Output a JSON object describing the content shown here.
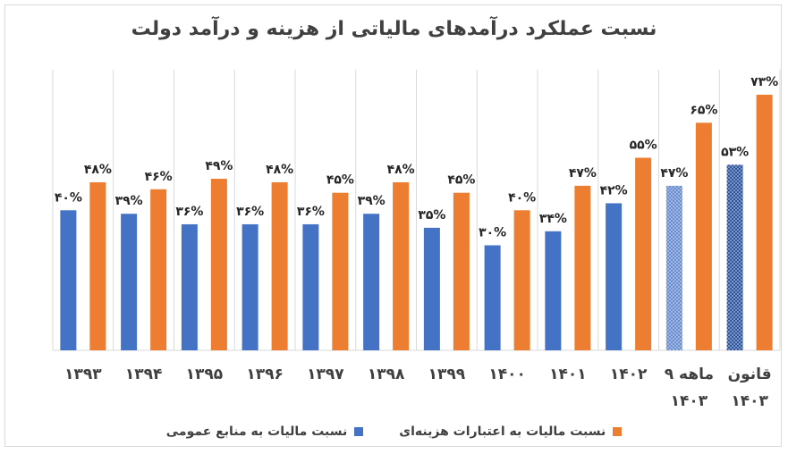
{
  "chart_data": {
    "type": "bar",
    "title": "نسبت عملکرد درآمدهای مالیاتی از هزینه و درآمد دولت",
    "categories": [
      "۱۳۹۳",
      "۱۳۹۴",
      "۱۳۹۵",
      "۱۳۹۶",
      "۱۳۹۷",
      "۱۳۹۸",
      "۱۳۹۹",
      "۱۴۰۰",
      "۱۴۰۱",
      "۱۴۰۲",
      "۹ ماهه ۱۴۰۳",
      "قانون ۱۴۰۳"
    ],
    "category_lines": [
      [
        "۱۳۹۳"
      ],
      [
        "۱۳۹۴"
      ],
      [
        "۱۳۹۵"
      ],
      [
        "۱۳۹۶"
      ],
      [
        "۱۳۹۷"
      ],
      [
        "۱۳۹۸"
      ],
      [
        "۱۳۹۹"
      ],
      [
        "۱۴۰۰"
      ],
      [
        "۱۴۰۱"
      ],
      [
        "۱۴۰۲"
      ],
      [
        "۹ ماهه",
        "۱۴۰۳"
      ],
      [
        "قانون",
        "۱۴۰۳"
      ]
    ],
    "series": [
      {
        "name": "نسبت مالیات به منابع عمومی",
        "color": "#4472c4",
        "values": [
          40,
          39,
          36,
          36,
          36,
          39,
          35,
          30,
          34,
          42,
          47,
          53
        ],
        "labels": [
          "۴۰%",
          "۳۹%",
          "۳۶%",
          "۳۶%",
          "۳۶%",
          "۳۹%",
          "۳۵%",
          "۳۰%",
          "۳۴%",
          "۴۲%",
          "۴۷%",
          "۵۳%"
        ],
        "patterns": [
          "solid",
          "solid",
          "solid",
          "solid",
          "solid",
          "solid",
          "solid",
          "solid",
          "solid",
          "solid",
          "light-dots",
          "dense-dots"
        ]
      },
      {
        "name": "نسبت مالیات به اعتبارات هزینه‌ای",
        "color": "#ed7d31",
        "values": [
          48,
          46,
          49,
          48,
          45,
          48,
          45,
          40,
          47,
          55,
          65,
          73
        ],
        "labels": [
          "۴۸%",
          "۴۶%",
          "۴۹%",
          "۴۸%",
          "۴۵%",
          "۴۸%",
          "۴۵%",
          "۴۰%",
          "۴۷%",
          "۵۵%",
          "۶۵%",
          "۷۳%"
        ],
        "patterns": [
          "solid",
          "solid",
          "solid",
          "solid",
          "solid",
          "solid",
          "solid",
          "solid",
          "solid",
          "solid",
          "solid",
          "solid"
        ]
      }
    ],
    "ylim": [
      0,
      73
    ],
    "grid": "vertical",
    "legend_position": "bottom"
  }
}
